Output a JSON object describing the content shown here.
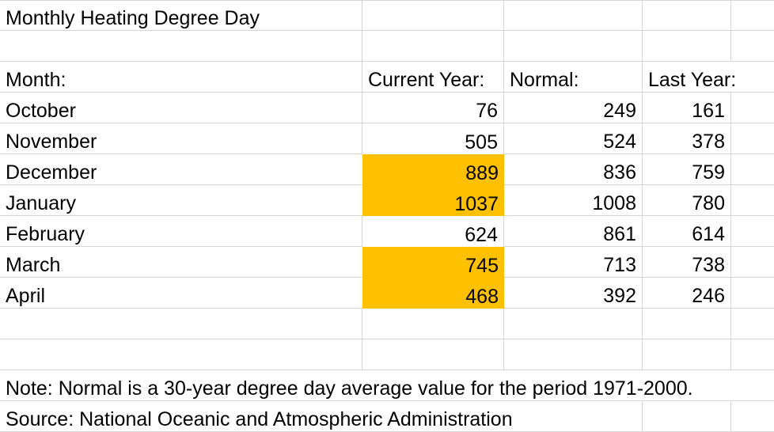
{
  "sheet": {
    "title": "Monthly Heating Degree Day",
    "headers": {
      "month": "Month:",
      "current": "Current Year:",
      "normal": "Normal:",
      "last": "Last Year:"
    },
    "rows": [
      {
        "month": "October",
        "current": 76,
        "normal": 249,
        "last": 161,
        "current_highlighted": false
      },
      {
        "month": "November",
        "current": 505,
        "normal": 524,
        "last": 378,
        "current_highlighted": false
      },
      {
        "month": "December",
        "current": 889,
        "normal": 836,
        "last": 759,
        "current_highlighted": true
      },
      {
        "month": "January",
        "current": 1037,
        "normal": 1008,
        "last": 780,
        "current_highlighted": true
      },
      {
        "month": "February",
        "current": 624,
        "normal": 861,
        "last": 614,
        "current_highlighted": false
      },
      {
        "month": "March",
        "current": 745,
        "normal": 713,
        "last": 738,
        "current_highlighted": true
      },
      {
        "month": "April",
        "current": 468,
        "normal": 392,
        "last": 246,
        "current_highlighted": true
      }
    ],
    "note": "Note: Normal is a 30-year degree day average value for the period 1971-2000.",
    "source": "Source: National Oceanic and Atmospheric Administration"
  },
  "colors": {
    "highlight": "#FFC000",
    "gridline": "#D5D5D5",
    "text": "#000000",
    "background": "#FFFFFF"
  }
}
